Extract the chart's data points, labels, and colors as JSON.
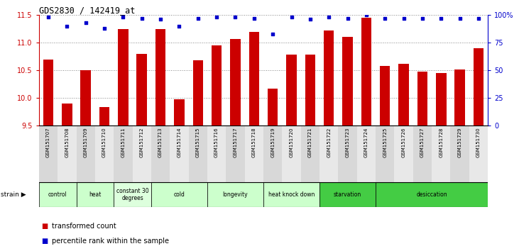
{
  "title": "GDS2830 / 142419_at",
  "samples": [
    "GSM151707",
    "GSM151708",
    "GSM151709",
    "GSM151710",
    "GSM151711",
    "GSM151712",
    "GSM151713",
    "GSM151714",
    "GSM151715",
    "GSM151716",
    "GSM151717",
    "GSM151718",
    "GSM151719",
    "GSM151720",
    "GSM151721",
    "GSM151722",
    "GSM151723",
    "GSM151724",
    "GSM151725",
    "GSM151726",
    "GSM151727",
    "GSM151728",
    "GSM151729",
    "GSM151730"
  ],
  "bar_values": [
    10.7,
    9.9,
    10.5,
    9.83,
    11.25,
    10.8,
    11.25,
    9.97,
    10.68,
    10.95,
    11.07,
    11.2,
    10.17,
    10.78,
    10.78,
    11.22,
    11.1,
    11.45,
    10.58,
    10.62,
    10.47,
    10.45,
    10.52,
    10.9
  ],
  "percentile_values": [
    98,
    90,
    93,
    88,
    98,
    97,
    96,
    90,
    97,
    98,
    98,
    97,
    83,
    98,
    96,
    98,
    97,
    100,
    97,
    97,
    97,
    97,
    97,
    97
  ],
  "bar_color": "#cc0000",
  "dot_color": "#0000cc",
  "ylim_left": [
    9.5,
    11.5
  ],
  "ylim_right": [
    0,
    100
  ],
  "yticks_left": [
    9.5,
    10.0,
    10.5,
    11.0,
    11.5
  ],
  "yticks_right": [
    0,
    25,
    50,
    75,
    100
  ],
  "ytick_labels_right": [
    "0",
    "25",
    "50",
    "75",
    "100%"
  ],
  "groups": [
    {
      "label": "control",
      "start": 0,
      "end": 2,
      "color": "#ccffcc"
    },
    {
      "label": "heat",
      "start": 2,
      "end": 4,
      "color": "#ccffcc"
    },
    {
      "label": "constant 30\ndegrees",
      "start": 4,
      "end": 6,
      "color": "#ddffdd"
    },
    {
      "label": "cold",
      "start": 6,
      "end": 9,
      "color": "#ccffcc"
    },
    {
      "label": "longevity",
      "start": 9,
      "end": 12,
      "color": "#ccffcc"
    },
    {
      "label": "heat knock down",
      "start": 12,
      "end": 15,
      "color": "#ccffcc"
    },
    {
      "label": "starvation",
      "start": 15,
      "end": 18,
      "color": "#44cc44"
    },
    {
      "label": "desiccation",
      "start": 18,
      "end": 24,
      "color": "#44cc44"
    }
  ],
  "legend_items": [
    {
      "label": "transformed count",
      "color": "#cc0000"
    },
    {
      "label": "percentile rank within the sample",
      "color": "#0000cc"
    }
  ],
  "background_color": "#ffffff",
  "grid_color": "#888888",
  "tick_color_left": "#cc0000",
  "tick_color_right": "#0000cc"
}
